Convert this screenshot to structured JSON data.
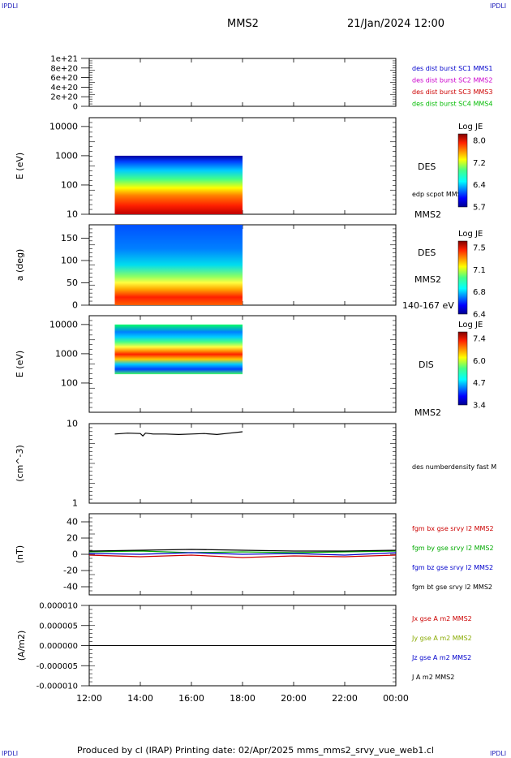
{
  "header": {
    "mission": "MMS2",
    "datetime": "21/Jan/2024 12:00",
    "corner_label": "IPDLI"
  },
  "footer": {
    "text": "Produced by cl (IRAP)    Printing date: 02/Apr/2025    mms_mms2_srvy_vue_web1.cl"
  },
  "time_axis": {
    "ticks": [
      "12:00",
      "14:00",
      "16:00",
      "18:00",
      "20:00",
      "22:00",
      "00:00"
    ],
    "data_start_hour": 13.0,
    "data_end_hour": 18.0
  },
  "chart_data": [
    {
      "type": "line",
      "panel": "des-dist-burst",
      "yticks": [
        "1e+21",
        "8e+20",
        "6e+20",
        "4e+20",
        "2e+20",
        "0"
      ],
      "ylim": [
        0,
        1e+21
      ],
      "series": [
        {
          "name": "des dist burst SC1 MMS1",
          "color": "#0000cc"
        },
        {
          "name": "des dist burst SC2 MMS2",
          "color": "#cc00cc"
        },
        {
          "name": "des dist burst SC3 MMS3",
          "color": "#cc0000"
        },
        {
          "name": "des dist burst SC4 MMS4",
          "color": "#00bb00"
        }
      ],
      "zero_line": "dashed"
    },
    {
      "type": "heatmap",
      "panel": "des-energy-spectrogram",
      "ylabel": "E (eV)",
      "scale": "log",
      "ylim": [
        10,
        20000
      ],
      "yticks": [
        "10000",
        "1000",
        "100",
        "10"
      ],
      "label": "DES",
      "spacecraft": "MMS2",
      "extra_label": "edp scpot MMS2",
      "colorbar": {
        "title": "Log JE",
        "ticks": [
          "8.0",
          "7.2",
          "6.4",
          "5.7"
        ]
      },
      "energy_range": [
        10,
        1000
      ]
    },
    {
      "type": "heatmap",
      "panel": "des-pitch-angle",
      "ylabel": "a (deg)",
      "ylim": [
        0,
        180
      ],
      "yticks": [
        "150",
        "100",
        "50",
        "0"
      ],
      "label": "DES",
      "spacecraft": "MMS2",
      "energy_label": "140-167 eV",
      "colorbar": {
        "title": "Log JE",
        "ticks": [
          "7.5",
          "7.1",
          "6.8",
          "6.4"
        ]
      }
    },
    {
      "type": "heatmap",
      "panel": "dis-energy-spectrogram",
      "ylabel": "E (eV)",
      "scale": "log",
      "ylim": [
        10,
        20000
      ],
      "yticks": [
        "10000",
        "1000",
        "100"
      ],
      "label": "DIS",
      "spacecraft": "MMS2",
      "colorbar": {
        "title": "Log JE",
        "ticks": [
          "7.4",
          "6.0",
          "4.7",
          "3.4"
        ]
      },
      "energy_range": [
        200,
        10000
      ]
    },
    {
      "type": "line",
      "panel": "des-numberdensity",
      "ylabel": "(cm^-3)",
      "scale": "log",
      "ylim": [
        1,
        10
      ],
      "yticks": [
        "10",
        "1"
      ],
      "series": [
        {
          "name": "des numberdensity fast M",
          "color": "#000000",
          "x": [
            13.0,
            13.5,
            14.0,
            14.1,
            14.2,
            14.5,
            15.0,
            15.5,
            16.0,
            16.5,
            17.0,
            17.5,
            18.0
          ],
          "y": [
            7.4,
            7.6,
            7.5,
            7.0,
            7.6,
            7.4,
            7.4,
            7.3,
            7.4,
            7.5,
            7.3,
            7.6,
            7.9
          ]
        }
      ]
    },
    {
      "type": "line",
      "panel": "fgm-b",
      "ylabel": "(nT)",
      "ylim": [
        -50,
        50
      ],
      "yticks": [
        "40",
        "20",
        "0",
        "-20",
        "-40"
      ],
      "series": [
        {
          "name": "fgm bx gse srvy l2 MMS2",
          "color": "#cc0000",
          "x": [
            12,
            14,
            16,
            18,
            20,
            22,
            24
          ],
          "y": [
            -1,
            -3,
            -1,
            -4,
            -2,
            -3,
            -1
          ]
        },
        {
          "name": "fgm by gse srvy l2 MMS2",
          "color": "#00aa00",
          "x": [
            12,
            14,
            16,
            18,
            20,
            22,
            24
          ],
          "y": [
            3,
            4,
            2,
            3,
            2,
            3,
            4
          ]
        },
        {
          "name": "fgm bz gse srvy l2 MMS2",
          "color": "#0000cc",
          "x": [
            12,
            14,
            16,
            18,
            20,
            22,
            24
          ],
          "y": [
            1,
            0,
            2,
            0,
            1,
            -1,
            2
          ]
        },
        {
          "name": "fgm bt gse srvy l2 MMS2",
          "color": "#000000",
          "x": [
            12,
            14,
            16,
            18,
            20,
            22,
            24
          ],
          "y": [
            4,
            5,
            6,
            5,
            4,
            4,
            5
          ]
        }
      ]
    },
    {
      "type": "line",
      "panel": "current-density",
      "ylabel": "(A/m2)",
      "ylim": [
        -1e-05,
        1e-05
      ],
      "yticks": [
        "0.000010",
        "0.000005",
        "0.000000",
        "-0.000005",
        "-0.000010"
      ],
      "series": [
        {
          "name": "Jx gse A m2 MMS2",
          "color": "#cc0000"
        },
        {
          "name": "Jy gse A m2 MMS2",
          "color": "#88aa00"
        },
        {
          "name": "Jz gse A m2 MMS2",
          "color": "#0000cc"
        },
        {
          "name": "J A m2 MMS2",
          "color": "#000000",
          "x": [
            12,
            24
          ],
          "y": [
            0,
            0
          ]
        }
      ]
    }
  ]
}
